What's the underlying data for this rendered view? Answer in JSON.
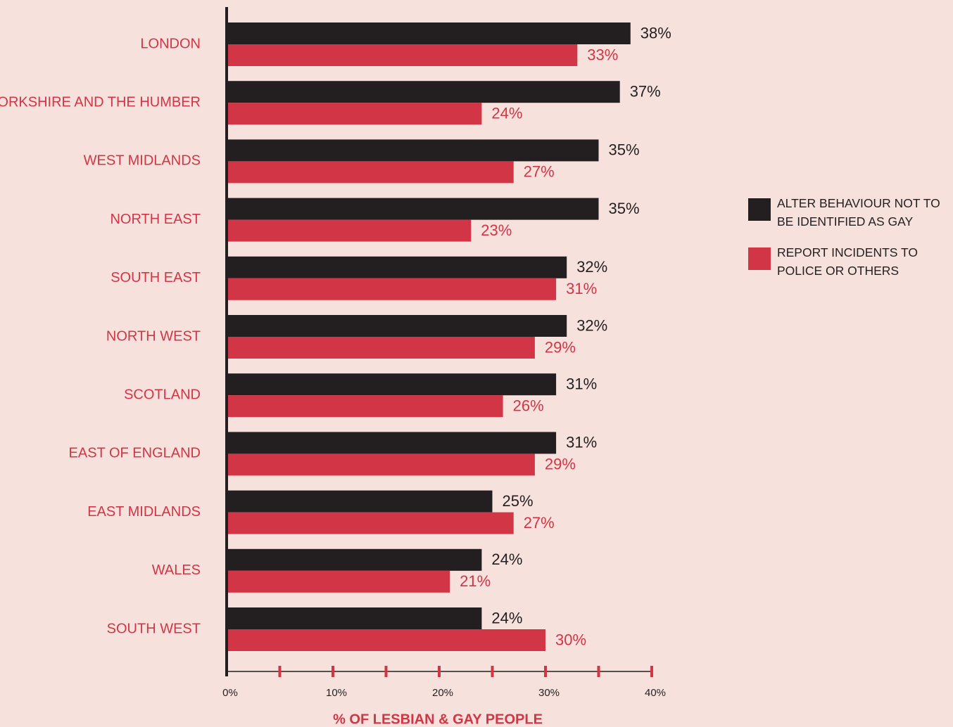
{
  "chart_data": {
    "type": "barh",
    "xlabel": "% OF LESBIAN & GAY PEOPLE",
    "categories": [
      "LONDON",
      "YORKSHIRE AND THE HUMBER",
      "WEST MIDLANDS",
      "NORTH EAST",
      "SOUTH EAST",
      "NORTH WEST",
      "SCOTLAND",
      "EAST OF ENGLAND",
      "EAST MIDLANDS",
      "WALES",
      "SOUTH WEST"
    ],
    "series": [
      {
        "name": "ALTER BEHAVIOUR NOT TO BE IDENTIFIED AS GAY",
        "color": "#231f20",
        "values": [
          38,
          37,
          35,
          35,
          32,
          32,
          31,
          31,
          25,
          24,
          24
        ],
        "value_labels": [
          "38%",
          "37%",
          "35%",
          "35%",
          "32%",
          "32%",
          "31%",
          "31%",
          "25%",
          "24%",
          "24%"
        ]
      },
      {
        "name": "REPORT INCIDENTS TO POLICE OR OTHERS",
        "color": "#d23545",
        "values": [
          33,
          24,
          27,
          23,
          31,
          29,
          26,
          29,
          27,
          21,
          30
        ],
        "value_labels": [
          "33%",
          "24%",
          "27%",
          "23%",
          "31%",
          "29%",
          "26%",
          "29%",
          "27%",
          "21%",
          "30%"
        ]
      }
    ],
    "xlim": [
      0,
      40
    ],
    "xticks": [
      {
        "value": 0,
        "label": "0%"
      },
      {
        "value": 10,
        "label": "10%"
      },
      {
        "value": 20,
        "label": "20%"
      },
      {
        "value": 30,
        "label": "30%"
      },
      {
        "value": 40,
        "label": "40%"
      }
    ],
    "xminorticks": [
      5,
      15,
      25,
      35
    ],
    "legend": "right"
  }
}
